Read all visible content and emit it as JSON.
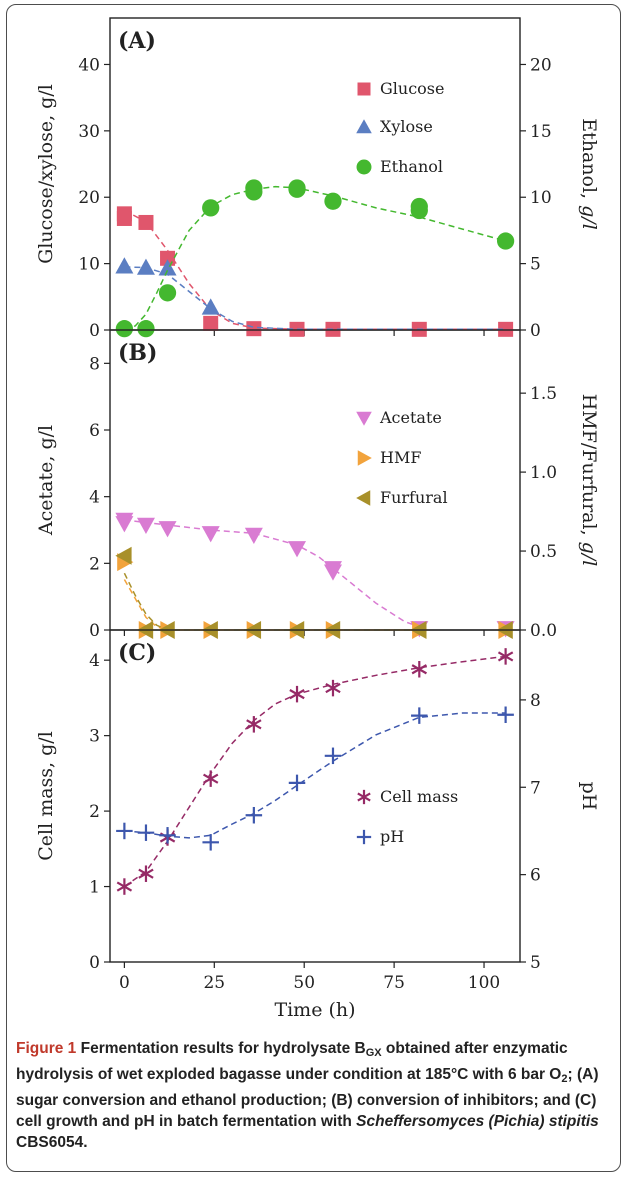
{
  "caption": {
    "lead": "Figure 1",
    "part1": " Fermentation results for hydrolysate B",
    "sub": "GX",
    "part2": " obtained after enzymatic hydrolysis of wet exploded bagasse under condition at 185°C with 6 bar O",
    "sub2": "2",
    "part3": "; (A) sugar conversion and ethanol production; (B) conversion of inhibitors; and (C) cell growth and pH in batch fermentation with ",
    "italic": "Scheffersomyces (Pichia) stipitis",
    "part4": " CBS6054."
  },
  "colors": {
    "glucose": "#e0566c",
    "xylose": "#5b7ec2",
    "ethanol": "#44b82f",
    "acetate": "#d97bd2",
    "hmf": "#f2a33c",
    "furfural": "#a8902a",
    "cellmass": "#962a66",
    "ph": "#3d57ad"
  },
  "chart_data": [
    {
      "type": "scatter",
      "panel_label": "(A)",
      "ylabel": "Glucose/xylose, g/l",
      "y2label_a": "Ethanol, ",
      "y2label_b": "g/l",
      "ylim": [
        0,
        47
      ],
      "y2lim": [
        0,
        23.5
      ],
      "yticks": [
        0,
        10,
        20,
        30,
        40
      ],
      "y2ticks": [
        0,
        5,
        10,
        15,
        20
      ],
      "xlim": [
        -4,
        110
      ],
      "series": [
        {
          "name": "Glucose",
          "marker": "square",
          "axis": "left",
          "x": [
            0,
            0,
            6,
            12,
            24,
            36,
            48,
            58,
            82,
            106
          ],
          "y": [
            17.5,
            16.8,
            16.2,
            10.8,
            1.0,
            0.2,
            0.1,
            0.1,
            0.1,
            0.1
          ],
          "fit": [
            [
              0,
              18
            ],
            [
              6,
              16.3
            ],
            [
              12,
              12
            ],
            [
              18,
              7
            ],
            [
              24,
              3.0
            ],
            [
              30,
              1.0
            ],
            [
              36,
              0.3
            ],
            [
              48,
              0.1
            ],
            [
              82,
              0.1
            ],
            [
              106,
              0.1
            ]
          ]
        },
        {
          "name": "Xylose",
          "marker": "triangle-up",
          "axis": "left",
          "x": [
            0,
            6,
            12,
            24
          ],
          "y": [
            9.6,
            9.4,
            9.3,
            3.4
          ],
          "fit": [
            [
              0,
              9.5
            ],
            [
              6,
              9.4
            ],
            [
              12,
              8.4
            ],
            [
              18,
              5.8
            ],
            [
              24,
              3.2
            ],
            [
              30,
              1.3
            ],
            [
              36,
              0.4
            ],
            [
              48,
              0.1
            ],
            [
              82,
              0.1
            ],
            [
              106,
              0.1
            ]
          ]
        },
        {
          "name": "Ethanol",
          "marker": "circle",
          "axis": "right",
          "x": [
            0,
            6,
            12,
            24,
            36,
            36,
            48,
            48,
            58,
            82,
            82,
            106
          ],
          "y": [
            0.1,
            0.1,
            2.8,
            9.2,
            10.4,
            10.7,
            10.7,
            10.6,
            9.7,
            9.0,
            9.3,
            6.7
          ],
          "fit": [
            [
              0,
              0.1
            ],
            [
              3,
              0.3
            ],
            [
              6,
              1.2
            ],
            [
              9,
              2.8
            ],
            [
              12,
              4.5
            ],
            [
              18,
              7.5
            ],
            [
              24,
              9.3
            ],
            [
              30,
              10.2
            ],
            [
              36,
              10.6
            ],
            [
              42,
              10.8
            ],
            [
              48,
              10.7
            ],
            [
              58,
              10.1
            ],
            [
              70,
              9.2
            ],
            [
              82,
              8.5
            ],
            [
              94,
              7.6
            ],
            [
              106,
              6.7
            ]
          ]
        }
      ]
    },
    {
      "type": "scatter",
      "panel_label": "(B)",
      "ylabel": "Acetate, g/l",
      "y2label_a": "HMF/Furfural, ",
      "y2label_b": "g/l",
      "ylim": [
        0,
        9
      ],
      "y2lim": [
        0,
        1.9
      ],
      "yticks": [
        0,
        2,
        4,
        6,
        8
      ],
      "y2ticks": [
        0.0,
        0.5,
        1.0,
        1.5
      ],
      "xlim": [
        -4,
        110
      ],
      "series": [
        {
          "name": "Acetate",
          "marker": "triangle-down",
          "axis": "left",
          "x": [
            0,
            0,
            6,
            12,
            24,
            36,
            48,
            58,
            58,
            82,
            106
          ],
          "y": [
            3.3,
            3.2,
            3.15,
            3.05,
            2.9,
            2.85,
            2.45,
            1.85,
            1.75,
            0.05,
            0.05
          ],
          "fit": [
            [
              0,
              3.3
            ],
            [
              12,
              3.15
            ],
            [
              24,
              3.0
            ],
            [
              36,
              2.9
            ],
            [
              48,
              2.55
            ],
            [
              54,
              2.2
            ],
            [
              62,
              1.5
            ],
            [
              70,
              0.8
            ],
            [
              78,
              0.25
            ],
            [
              82,
              0.1
            ]
          ]
        },
        {
          "name": "HMF",
          "marker": "triangle-right",
          "axis": "right",
          "x": [
            0,
            6,
            12,
            24,
            36,
            48,
            58,
            82,
            106
          ],
          "y": [
            0.43,
            0.0,
            0.0,
            0.0,
            0.0,
            0.0,
            0.0,
            0.0,
            0.0
          ],
          "fit": [
            [
              0,
              0.32
            ],
            [
              3,
              0.2
            ],
            [
              6,
              0.08
            ],
            [
              9,
              0.02
            ],
            [
              12,
              0.0
            ],
            [
              82,
              0.0
            ]
          ]
        },
        {
          "name": "Furfural",
          "marker": "triangle-left",
          "axis": "right",
          "x": [
            0,
            6,
            12,
            24,
            36,
            48,
            58,
            82,
            106
          ],
          "y": [
            0.47,
            0.0,
            0.0,
            0.0,
            0.0,
            0.0,
            0.0,
            0.0,
            0.0
          ],
          "fit": [
            [
              0,
              0.36
            ],
            [
              3,
              0.22
            ],
            [
              6,
              0.1
            ],
            [
              9,
              0.03
            ],
            [
              12,
              0.0
            ],
            [
              82,
              0.0
            ]
          ]
        }
      ]
    },
    {
      "type": "scatter",
      "panel_label": "(C)",
      "ylabel": "Cell mass, g/l",
      "y2label_a": "pH",
      "y2label_b": "",
      "xlabel": "Time (h)",
      "ylim": [
        0,
        4.4
      ],
      "y2lim": [
        5,
        8.8
      ],
      "yticks": [
        0,
        1,
        2,
        3,
        4
      ],
      "y2ticks": [
        5,
        6,
        7,
        8
      ],
      "xlim": [
        -4,
        110
      ],
      "xticks": [
        0,
        25,
        50,
        75,
        100
      ],
      "series": [
        {
          "name": "Cell mass",
          "marker": "asterisk",
          "axis": "left",
          "x": [
            0,
            6,
            12,
            24,
            36,
            48,
            58,
            82,
            106
          ],
          "y": [
            1.0,
            1.17,
            1.65,
            2.43,
            3.15,
            3.55,
            3.63,
            3.88,
            4.05
          ],
          "fit": [
            [
              0,
              1.0
            ],
            [
              6,
              1.2
            ],
            [
              12,
              1.6
            ],
            [
              18,
              2.05
            ],
            [
              24,
              2.5
            ],
            [
              30,
              2.9
            ],
            [
              36,
              3.2
            ],
            [
              42,
              3.42
            ],
            [
              48,
              3.55
            ],
            [
              58,
              3.68
            ],
            [
              70,
              3.8
            ],
            [
              82,
              3.9
            ],
            [
              94,
              3.98
            ],
            [
              106,
              4.05
            ]
          ]
        },
        {
          "name": "pH",
          "marker": "plus",
          "axis": "right",
          "x": [
            0,
            6,
            12,
            24,
            36,
            48,
            58,
            82,
            106
          ],
          "y": [
            6.5,
            6.48,
            6.45,
            6.37,
            6.68,
            7.05,
            7.36,
            7.82,
            7.83
          ],
          "fit": [
            [
              0,
              6.5
            ],
            [
              6,
              6.48
            ],
            [
              12,
              6.44
            ],
            [
              18,
              6.42
            ],
            [
              24,
              6.45
            ],
            [
              30,
              6.58
            ],
            [
              36,
              6.7
            ],
            [
              42,
              6.85
            ],
            [
              48,
              7.02
            ],
            [
              58,
              7.3
            ],
            [
              70,
              7.6
            ],
            [
              82,
              7.8
            ],
            [
              94,
              7.85
            ],
            [
              106,
              7.85
            ]
          ]
        }
      ]
    }
  ]
}
